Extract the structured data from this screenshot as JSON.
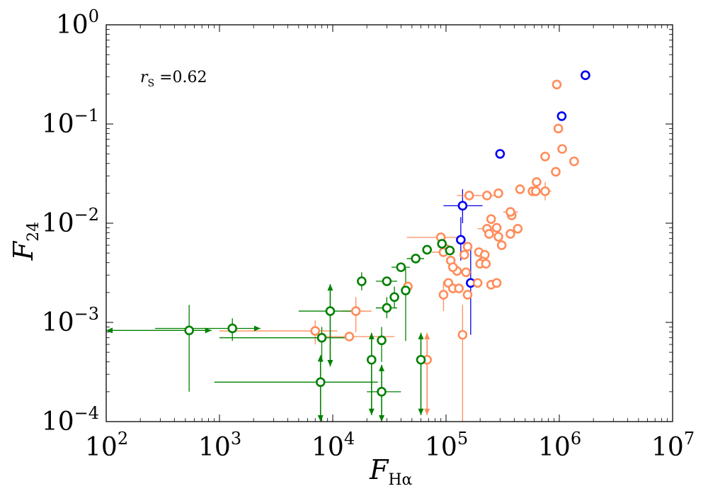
{
  "chart_data": {
    "type": "scatter",
    "xscale": "log",
    "yscale": "log",
    "xlim": [
      100,
      10000000
    ],
    "ylim": [
      0.0001,
      1
    ],
    "xlabel_main": "F",
    "xlabel_sub": "Hα",
    "ylabel_main": "F",
    "ylabel_sub": "24",
    "x_ticks": [
      {
        "value": 100,
        "base": "10",
        "exp": "2"
      },
      {
        "value": 1000,
        "base": "10",
        "exp": "3"
      },
      {
        "value": 10000,
        "base": "10",
        "exp": "4"
      },
      {
        "value": 100000,
        "base": "10",
        "exp": "5"
      },
      {
        "value": 1000000,
        "base": "10",
        "exp": "6"
      },
      {
        "value": 10000000,
        "base": "10",
        "exp": "7"
      }
    ],
    "y_ticks": [
      {
        "value": 0.0001,
        "base": "10",
        "exp": "−4"
      },
      {
        "value": 0.001,
        "base": "10",
        "exp": "−3"
      },
      {
        "value": 0.01,
        "base": "10",
        "exp": "−2"
      },
      {
        "value": 0.1,
        "base": "10",
        "exp": "−1"
      },
      {
        "value": 1,
        "base": "10",
        "exp": "0"
      }
    ],
    "annotation": {
      "label_main": "r",
      "label_sub": "S",
      "label_value": " =0.62"
    },
    "series": [
      {
        "name": "blue",
        "color": "#0000ee",
        "points": [
          {
            "x": 1700000,
            "y": 0.31
          },
          {
            "x": 1050000,
            "y": 0.12
          },
          {
            "x": 300000,
            "y": 0.05
          },
          {
            "x": 140000,
            "y": 0.015,
            "xerr": [
              95000,
              210000
            ],
            "yerr": [
              0.01,
              0.022
            ]
          },
          {
            "x": 135000,
            "y": 0.0068,
            "yerr": [
              0.0042,
              0.0115
            ]
          },
          {
            "x": 165000,
            "y": 0.0025,
            "yerr": [
              0.00075,
              0.006
            ]
          }
        ]
      },
      {
        "name": "orange",
        "color": "#ff8c5a",
        "points": [
          {
            "x": 950000,
            "y": 0.25
          },
          {
            "x": 980000,
            "y": 0.09
          },
          {
            "x": 1060000,
            "y": 0.056
          },
          {
            "x": 1350000,
            "y": 0.042
          },
          {
            "x": 750000,
            "y": 0.047
          },
          {
            "x": 930000,
            "y": 0.033
          },
          {
            "x": 630000,
            "y": 0.026
          },
          {
            "x": 580000,
            "y": 0.021
          },
          {
            "x": 620000,
            "y": 0.021
          },
          {
            "x": 750000,
            "y": 0.021,
            "xerr": [
              660000,
              850000
            ],
            "yerr": [
              0.017,
              0.026
            ]
          },
          {
            "x": 450000,
            "y": 0.022
          },
          {
            "x": 160000,
            "y": 0.019,
            "xerr": [
              125000,
              200000
            ]
          },
          {
            "x": 230000,
            "y": 0.019,
            "xerr": [
              180000,
              300000
            ]
          },
          {
            "x": 290000,
            "y": 0.02
          },
          {
            "x": 380000,
            "y": 0.012
          },
          {
            "x": 370000,
            "y": 0.013,
            "xerr": [
              320000,
              430000
            ]
          },
          {
            "x": 250000,
            "y": 0.011
          },
          {
            "x": 230000,
            "y": 0.0088,
            "xerr": [
              190000,
              270000
            ]
          },
          {
            "x": 280000,
            "y": 0.009
          },
          {
            "x": 430000,
            "y": 0.0088
          },
          {
            "x": 240000,
            "y": 0.0078
          },
          {
            "x": 290000,
            "y": 0.0073
          },
          {
            "x": 370000,
            "y": 0.0078
          },
          {
            "x": 310000,
            "y": 0.006
          },
          {
            "x": 90000,
            "y": 0.0072,
            "xerr": [
              45000,
              140000
            ]
          },
          {
            "x": 100000,
            "y": 0.0055
          },
          {
            "x": 95000,
            "y": 0.0051,
            "xerr": [
              75000,
              120000
            ]
          },
          {
            "x": 155000,
            "y": 0.0058
          },
          {
            "x": 145000,
            "y": 0.0048
          },
          {
            "x": 195000,
            "y": 0.0051
          },
          {
            "x": 220000,
            "y": 0.0048
          },
          {
            "x": 210000,
            "y": 0.0041
          },
          {
            "x": 200000,
            "y": 0.0039
          },
          {
            "x": 225000,
            "y": 0.0039
          },
          {
            "x": 110000,
            "y": 0.0042
          },
          {
            "x": 125000,
            "y": 0.0033
          },
          {
            "x": 115000,
            "y": 0.0036
          },
          {
            "x": 150000,
            "y": 0.0032
          },
          {
            "x": 190000,
            "y": 0.0025
          },
          {
            "x": 250000,
            "y": 0.0024
          },
          {
            "x": 280000,
            "y": 0.0025
          },
          {
            "x": 105000,
            "y": 0.0025
          },
          {
            "x": 115000,
            "y": 0.0022
          },
          {
            "x": 130000,
            "y": 0.0022
          },
          {
            "x": 95000,
            "y": 0.0019,
            "yerr": [
              0.0013,
              0.0026
            ]
          },
          {
            "x": 155000,
            "y": 0.0019
          },
          {
            "x": 46000,
            "y": 0.0023
          },
          {
            "x": 16000,
            "y": 0.0013,
            "xerr": [
              12000,
              22000
            ],
            "yerr": [
              0.0008,
              0.0018
            ]
          },
          {
            "x": 7000,
            "y": 0.00082,
            "xerr": [
              1000,
              11000
            ],
            "yerr": [
              0.0006,
              0.00105
            ]
          },
          {
            "x": 14000,
            "y": 0.00072,
            "xerr": [
              8000,
              35000
            ]
          },
          {
            "x": 140000,
            "y": 0.00075,
            "yerr": [
              0.0001,
              0.0015
            ]
          },
          {
            "x": 68000,
            "y": 0.00042,
            "uplim": true
          }
        ]
      },
      {
        "name": "green",
        "color": "#008000",
        "points": [
          {
            "x": 68000,
            "y": 0.0054
          },
          {
            "x": 92000,
            "y": 0.0062
          },
          {
            "x": 108000,
            "y": 0.0053
          },
          {
            "x": 54000,
            "y": 0.0044,
            "xerr": [
              45000,
              64000
            ]
          },
          {
            "x": 40000,
            "y": 0.0036,
            "xerr": [
              33000,
              48000
            ]
          },
          {
            "x": 30000,
            "y": 0.0026,
            "xerr": [
              24000,
              37000
            ]
          },
          {
            "x": 18000,
            "y": 0.0026,
            "yerr": [
              0.0021,
              0.0032
            ]
          },
          {
            "x": 44000,
            "y": 0.0021,
            "yerr": [
              0.00065,
              0.0035
            ]
          },
          {
            "x": 35000,
            "y": 0.0018,
            "yerr": [
              0.0014,
              0.0023
            ]
          },
          {
            "x": 30000,
            "y": 0.0014,
            "xerr": [
              24000,
              37000
            ],
            "yerr": [
              0.0011,
              0.0018
            ]
          },
          {
            "x": 9500,
            "y": 0.0013,
            "xerr": [
              5000,
              17000
            ],
            "uplim": true
          },
          {
            "x": 540,
            "y": 0.00083,
            "xerr": [
              100,
              850
            ],
            "xlolim": true,
            "yerr": [
              0.0002,
              0.0015
            ]
          },
          {
            "x": 1300,
            "y": 0.00087,
            "xerr": [
              270,
              2300
            ],
            "xlolim": true,
            "yerr": [
              0.00065,
              0.0011
            ]
          },
          {
            "x": 8000,
            "y": 0.0007,
            "xerr": [
              1000,
              15000
            ],
            "yerr": [
              0.0004,
              0.0009
            ]
          },
          {
            "x": 27000,
            "y": 0.00066,
            "yerr": [
              0.0004,
              0.0009
            ]
          },
          {
            "x": 22000,
            "y": 0.00042,
            "uplim": true
          },
          {
            "x": 60000,
            "y": 0.00042,
            "uplim": true
          },
          {
            "x": 7800,
            "y": 0.00025,
            "xerr": [
              900,
              25000
            ],
            "uplim": true
          },
          {
            "x": 27000,
            "y": 0.0002,
            "xerr": [
              20000,
              40000
            ],
            "uplim": true
          }
        ]
      }
    ]
  }
}
